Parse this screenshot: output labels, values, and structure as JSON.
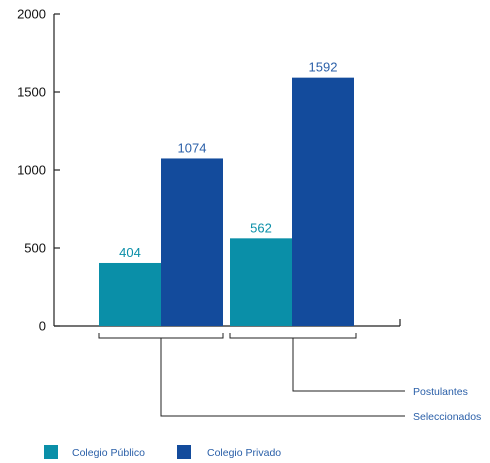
{
  "chart_data": {
    "type": "bar",
    "categories": [
      "Seleccionados",
      "Postulantes"
    ],
    "series": [
      {
        "name": "Colegio Público",
        "color": "#0a8fa8",
        "values": [
          404,
          562
        ]
      },
      {
        "name": "Colegio Privado",
        "color": "#134b9c",
        "values": [
          1074,
          1592
        ]
      }
    ],
    "ylim": [
      0,
      2000
    ],
    "yticks": [
      0,
      500,
      1000,
      1500,
      2000
    ],
    "grid": false,
    "legend_position": "bottom-left",
    "data_labels": true,
    "annotations": [
      "Postulantes",
      "Seleccionados"
    ]
  }
}
